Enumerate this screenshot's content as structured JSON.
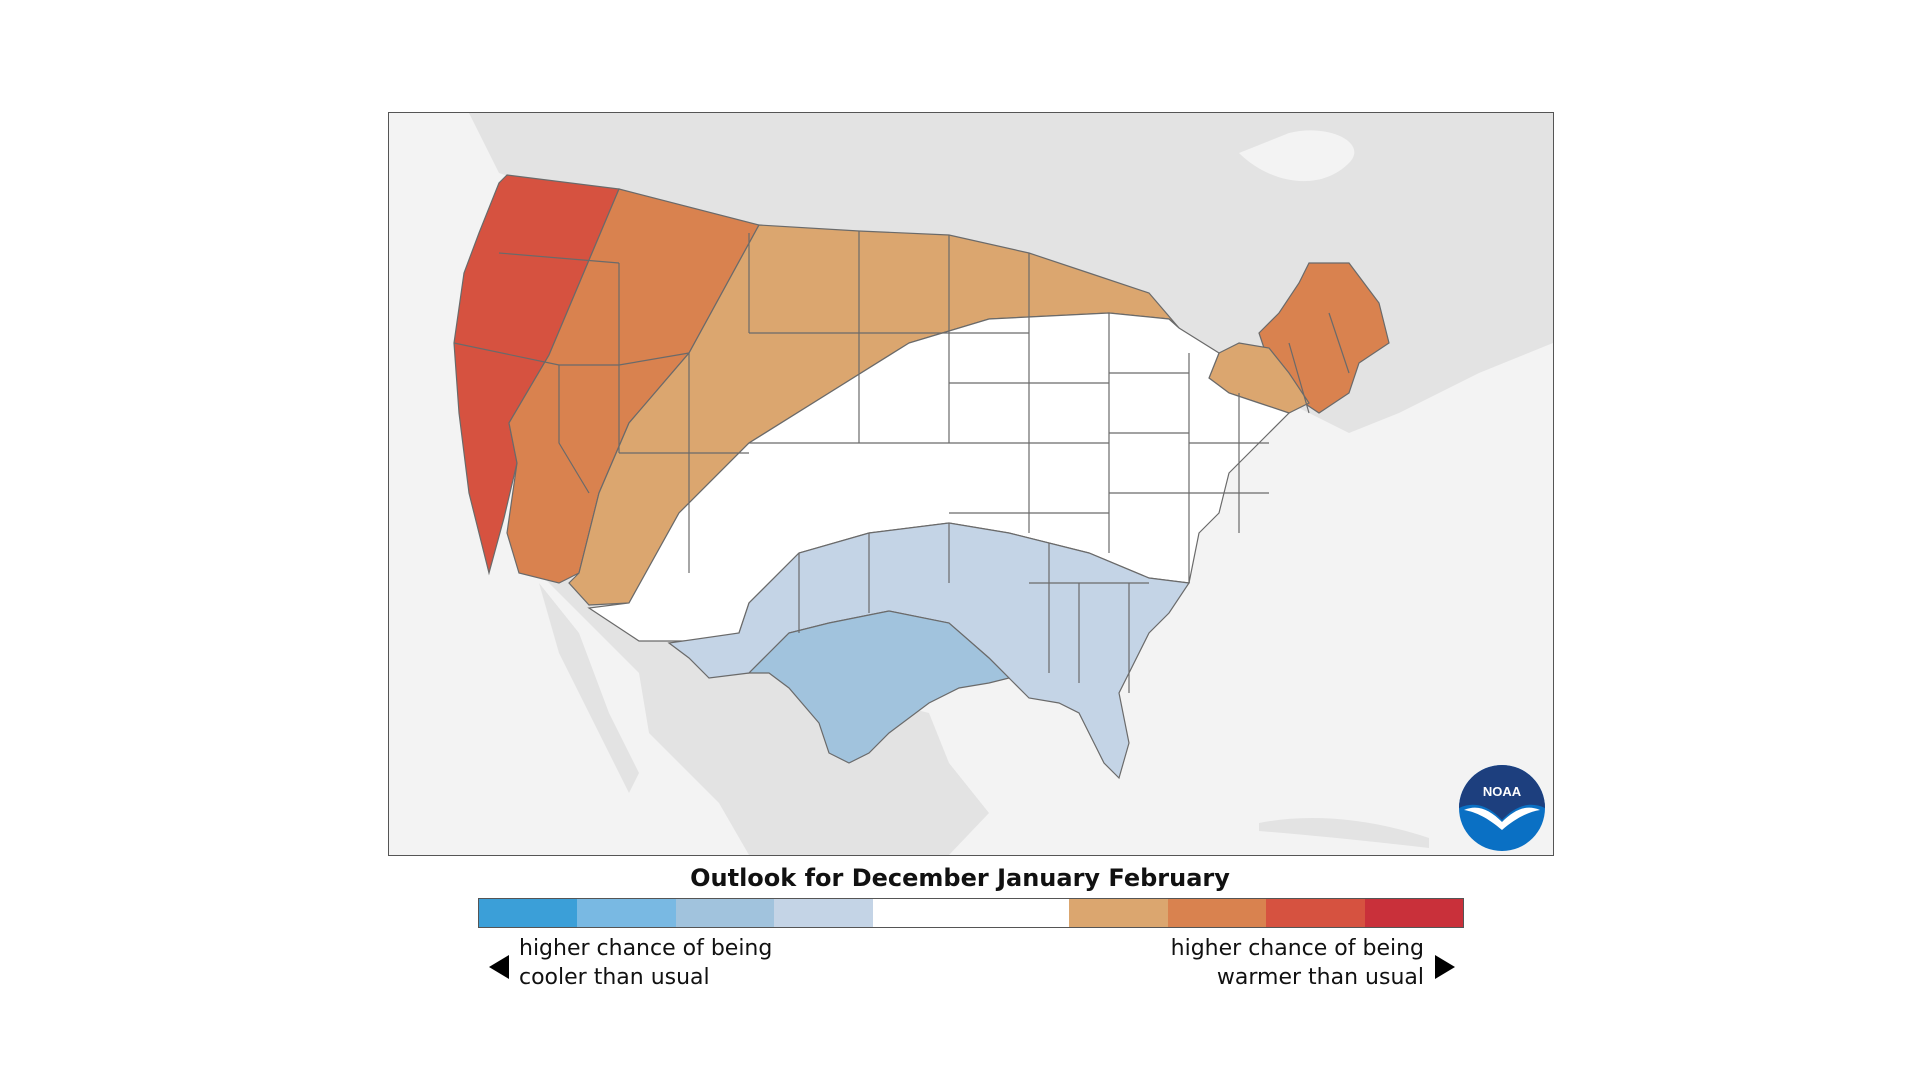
{
  "title": "Outlook for December January February",
  "logo_text": "NOAA",
  "legend": {
    "colors": [
      "#3b9fd8",
      "#79b9e3",
      "#a1c3dd",
      "#c4d4e6",
      "#ffffff",
      "#ffffff",
      "#dba66f",
      "#d9824f",
      "#d65240",
      "#c9303a"
    ],
    "cooler_line1": "higher chance of being",
    "cooler_line2": "cooler than usual",
    "warmer_line1": "higher chance of being",
    "warmer_line2": "warmer than usual"
  },
  "map": {
    "background_land": "#e3e3e3",
    "background_water": "#f3f3f3",
    "regions": [
      {
        "name": "west-coast-strong-warm",
        "color": "#d65240"
      },
      {
        "name": "great-basin-warm",
        "color": "#d9824f"
      },
      {
        "name": "northern-rockies-plains-warm",
        "color": "#dba66f"
      },
      {
        "name": "northeast-warm",
        "color": "#d9824f"
      },
      {
        "name": "northeast-mild-warm",
        "color": "#dba66f"
      },
      {
        "name": "central-near-normal",
        "color": "#ffffff"
      },
      {
        "name": "south-cool",
        "color": "#c4d4e6"
      },
      {
        "name": "gulf-coast-cooler",
        "color": "#a1c3dd"
      }
    ]
  }
}
